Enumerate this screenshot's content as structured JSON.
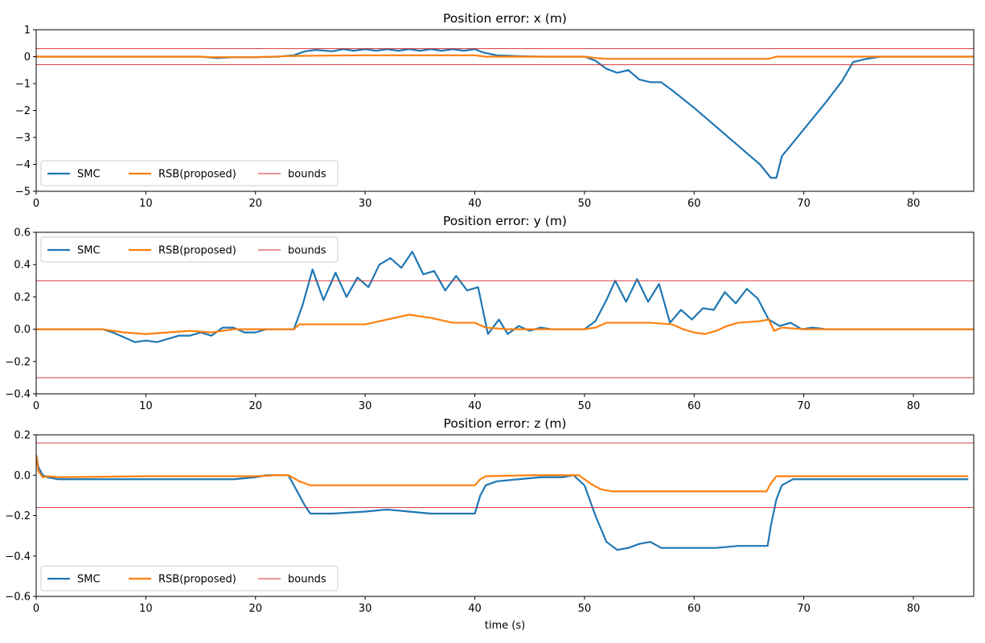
{
  "figure": {
    "xlabel": "time (s)",
    "colors": {
      "smc": "#1f77b4",
      "rsb": "#ff7f0e",
      "bounds": "#d62728"
    }
  },
  "chart_data": [
    {
      "type": "line",
      "title": "Position error: x (m)",
      "xlabel": "",
      "ylabel": "",
      "xlim": [
        0,
        85.5
      ],
      "ylim": [
        -5,
        1
      ],
      "xticks": [
        0,
        10,
        20,
        30,
        40,
        50,
        60,
        70,
        80
      ],
      "yticks": [
        -5,
        -4,
        -3,
        -2,
        -1,
        0,
        1
      ],
      "grid": false,
      "legend": {
        "placement": "lower-left",
        "entries": [
          "SMC",
          "RSB(proposed)",
          "bounds"
        ]
      },
      "bounds": [
        0.3,
        -0.3
      ],
      "series": [
        {
          "name": "SMC",
          "color": "#1f77b4",
          "x": [
            0,
            10,
            15,
            16.5,
            18,
            20,
            22,
            23.5,
            24.5,
            25.5,
            27,
            28,
            29,
            30,
            31,
            32,
            33,
            34,
            35,
            36,
            37,
            38,
            39,
            40,
            40.8,
            42,
            44,
            46,
            48,
            50,
            51,
            52,
            53,
            54,
            55,
            56,
            57,
            58,
            60,
            62,
            64,
            66,
            67,
            67.5,
            68,
            70,
            72,
            73.5,
            74.5,
            75.5,
            77,
            80,
            85.5
          ],
          "y": [
            0,
            0,
            0,
            -0.05,
            -0.02,
            -0.02,
            0,
            0.05,
            0.2,
            0.25,
            0.2,
            0.28,
            0.22,
            0.28,
            0.22,
            0.28,
            0.22,
            0.28,
            0.22,
            0.28,
            0.22,
            0.28,
            0.22,
            0.28,
            0.15,
            0.05,
            0.02,
            0,
            0,
            0,
            -0.15,
            -0.45,
            -0.6,
            -0.5,
            -0.85,
            -0.95,
            -0.95,
            -1.25,
            -1.9,
            -2.6,
            -3.3,
            -4.0,
            -4.5,
            -4.5,
            -3.7,
            -2.7,
            -1.7,
            -0.9,
            -0.2,
            -0.1,
            0,
            0,
            0
          ]
        },
        {
          "name": "RSB(proposed)",
          "color": "#ff7f0e",
          "x": [
            0,
            15,
            16,
            20,
            23,
            24,
            30,
            35,
            40,
            41,
            45,
            50,
            51,
            52,
            55,
            60,
            65,
            66.8,
            67.5,
            70,
            85.5
          ],
          "y": [
            0,
            0,
            -0.02,
            -0.02,
            0.02,
            0.03,
            0.05,
            0.05,
            0.05,
            0,
            0,
            0,
            -0.05,
            -0.08,
            -0.08,
            -0.08,
            -0.08,
            -0.08,
            0,
            0,
            0
          ]
        }
      ]
    },
    {
      "type": "line",
      "title": "Position error: y (m)",
      "xlabel": "",
      "ylabel": "",
      "xlim": [
        0,
        85.5
      ],
      "ylim": [
        -0.4,
        0.6
      ],
      "xticks": [
        0,
        10,
        20,
        30,
        40,
        50,
        60,
        70,
        80
      ],
      "yticks": [
        -0.4,
        -0.2,
        0.0,
        0.2,
        0.4,
        0.6
      ],
      "grid": false,
      "legend": {
        "placement": "upper-left",
        "entries": [
          "SMC",
          "RSB(proposed)",
          "bounds"
        ]
      },
      "bounds": [
        0.3,
        -0.3
      ],
      "series": [
        {
          "name": "SMC",
          "color": "#1f77b4",
          "x": [
            0,
            6,
            7,
            8,
            9,
            10,
            11,
            12,
            13,
            14,
            15,
            16,
            17,
            18,
            19,
            20,
            21,
            22,
            23.5,
            24.3,
            25.2,
            26.2,
            27.3,
            28.3,
            29.3,
            30.3,
            31.3,
            32.3,
            33.3,
            34.3,
            35.3,
            36.3,
            37.3,
            38.3,
            39.3,
            40.3,
            41.2,
            42.2,
            43,
            44,
            45,
            46,
            47,
            48,
            50,
            51,
            52,
            52.8,
            53.8,
            54.8,
            55.8,
            56.8,
            57.8,
            58.8,
            59.8,
            60.8,
            61.8,
            62.8,
            63.8,
            64.8,
            65.8,
            66.8,
            67.8,
            68.8,
            69.8,
            70.8,
            72,
            75,
            85.5
          ],
          "y": [
            0,
            0,
            -0.02,
            -0.05,
            -0.08,
            -0.07,
            -0.08,
            -0.06,
            -0.04,
            -0.04,
            -0.02,
            -0.04,
            0.01,
            0.01,
            -0.02,
            -0.02,
            0,
            0,
            0,
            0.15,
            0.37,
            0.18,
            0.35,
            0.2,
            0.32,
            0.26,
            0.4,
            0.44,
            0.38,
            0.48,
            0.34,
            0.36,
            0.24,
            0.33,
            0.24,
            0.26,
            -0.03,
            0.06,
            -0.03,
            0.02,
            -0.01,
            0.01,
            0,
            0,
            0,
            0.05,
            0.18,
            0.3,
            0.17,
            0.31,
            0.17,
            0.28,
            0.04,
            0.12,
            0.06,
            0.13,
            0.12,
            0.23,
            0.16,
            0.25,
            0.19,
            0.06,
            0.02,
            0.04,
            0,
            0.01,
            0,
            0,
            0
          ]
        },
        {
          "name": "RSB(proposed)",
          "color": "#ff7f0e",
          "x": [
            0,
            6,
            8,
            10,
            12,
            14,
            16,
            18,
            20,
            22,
            23.5,
            24,
            26,
            28,
            30,
            32,
            34,
            36,
            38,
            40,
            41,
            43,
            45,
            50,
            51,
            52,
            54,
            56,
            58,
            59,
            60,
            61,
            62,
            63,
            64,
            66,
            66.8,
            67.3,
            68,
            70,
            85.5
          ],
          "y": [
            0,
            0,
            -0.02,
            -0.03,
            -0.02,
            -0.01,
            -0.02,
            0,
            0,
            0,
            0,
            0.03,
            0.03,
            0.03,
            0.03,
            0.06,
            0.09,
            0.07,
            0.04,
            0.04,
            0.01,
            0,
            0,
            0,
            0.01,
            0.04,
            0.04,
            0.04,
            0.03,
            0,
            -0.02,
            -0.03,
            -0.01,
            0.02,
            0.04,
            0.05,
            0.06,
            -0.01,
            0.01,
            0,
            0
          ]
        }
      ]
    },
    {
      "type": "line",
      "title": "Position error: z (m)",
      "xlabel": "time (s)",
      "ylabel": "",
      "xlim": [
        0,
        85.5
      ],
      "ylim": [
        -0.6,
        0.2
      ],
      "xticks": [
        0,
        10,
        20,
        30,
        40,
        50,
        60,
        70,
        80
      ],
      "yticks": [
        -0.6,
        -0.4,
        -0.2,
        0.0,
        0.2
      ],
      "grid": false,
      "legend": {
        "placement": "lower-left",
        "entries": [
          "SMC",
          "RSB(proposed)",
          "bounds"
        ]
      },
      "bounds": [
        0.16,
        -0.16
      ],
      "series": [
        {
          "name": "SMC",
          "color": "#1f77b4",
          "x": [
            0,
            0.2,
            0.6,
            1,
            2,
            5,
            10,
            15,
            18,
            20,
            21,
            22,
            23,
            23.5,
            24.5,
            25,
            27,
            30,
            32,
            34,
            36,
            38,
            40,
            40.5,
            41,
            42,
            44,
            46,
            48,
            49,
            50,
            51,
            52,
            53,
            54,
            55,
            56,
            57,
            58,
            60,
            62,
            64,
            66,
            66.7,
            67,
            67.5,
            68,
            69,
            70,
            75,
            80,
            85
          ],
          "y": [
            0.1,
            0.04,
            0.0,
            -0.01,
            -0.02,
            -0.02,
            -0.02,
            -0.02,
            -0.02,
            -0.01,
            0,
            0,
            0,
            -0.05,
            -0.15,
            -0.19,
            -0.19,
            -0.18,
            -0.17,
            -0.18,
            -0.19,
            -0.19,
            -0.19,
            -0.1,
            -0.05,
            -0.03,
            -0.02,
            -0.01,
            -0.01,
            0,
            -0.05,
            -0.2,
            -0.33,
            -0.37,
            -0.36,
            -0.34,
            -0.33,
            -0.36,
            -0.36,
            -0.36,
            -0.36,
            -0.35,
            -0.35,
            -0.35,
            -0.25,
            -0.12,
            -0.05,
            -0.02,
            -0.02,
            -0.02,
            -0.02,
            -0.02
          ]
        },
        {
          "name": "RSB(proposed)",
          "color": "#ff7f0e",
          "x": [
            0,
            0.2,
            0.6,
            1,
            2,
            10,
            20,
            22,
            23,
            24,
            25,
            30,
            35,
            40,
            40.5,
            41,
            45,
            48,
            49.5,
            50.5,
            51.5,
            52.5,
            55,
            60,
            65,
            66.6,
            67,
            67.5,
            70,
            85
          ],
          "y": [
            0.1,
            0.02,
            -0.01,
            -0.005,
            -0.01,
            -0.005,
            -0.005,
            0,
            0,
            -0.03,
            -0.05,
            -0.05,
            -0.05,
            -0.05,
            -0.02,
            -0.005,
            0,
            0,
            0,
            -0.04,
            -0.07,
            -0.08,
            -0.08,
            -0.08,
            -0.08,
            -0.08,
            -0.04,
            -0.005,
            -0.005,
            -0.005
          ]
        }
      ]
    }
  ]
}
